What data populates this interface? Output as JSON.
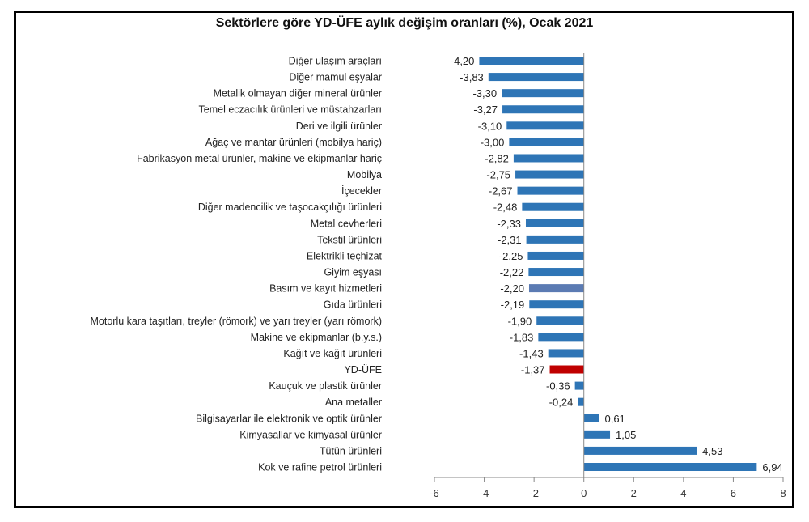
{
  "chart_data": {
    "type": "bar",
    "orientation": "horizontal",
    "title": "Sektörlere göre YD-ÜFE aylık değişim oranları (%), Ocak 2021",
    "xlabel": "",
    "ylabel": "",
    "xlim": [
      -6,
      8
    ],
    "xticks": [
      "-6",
      "-4",
      "-2",
      "0",
      "2",
      "4",
      "6",
      "8"
    ],
    "grid": false,
    "legend": "none",
    "categories": [
      "Diğer ulaşım araçları",
      "Diğer mamul eşyalar",
      "Metalik olmayan diğer mineral ürünler",
      "Temel eczacılık ürünleri ve müstahzarları",
      "Deri ve ilgili ürünler",
      "Ağaç ve mantar ürünleri (mobilya hariç)",
      "Fabrikasyon metal ürünler, makine ve ekipmanlar hariç",
      "Mobilya",
      "İçecekler",
      "Diğer madencilik ve taşocakçılığı ürünleri",
      "Metal cevherleri",
      "Tekstil ürünleri",
      "Elektrikli teçhizat",
      "Giyim eşyası",
      "Basım ve kayıt hizmetleri",
      "Gıda ürünleri",
      "Motorlu kara taşıtları, treyler (römork) ve yarı treyler (yarı römork)",
      "Makine ve ekipmanlar (b.y.s.)",
      "Kağıt ve kağıt ürünleri",
      "YD-ÜFE",
      "Kauçuk ve plastik ürünler",
      "Ana metaller",
      "Bilgisayarlar ile elektronik ve optik ürünler",
      "Kimyasallar ve kimyasal ürünler",
      "Tütün ürünleri",
      "Kok ve rafine petrol ürünleri"
    ],
    "values": [
      -4.2,
      -3.83,
      -3.3,
      -3.27,
      -3.1,
      -3.0,
      -2.82,
      -2.75,
      -2.67,
      -2.48,
      -2.33,
      -2.31,
      -2.25,
      -2.22,
      -2.2,
      -2.19,
      -1.9,
      -1.83,
      -1.43,
      -1.37,
      -0.36,
      -0.24,
      0.61,
      1.05,
      4.53,
      6.94
    ],
    "value_labels": [
      "-4,20",
      "-3,83",
      "-3,30",
      "-3,27",
      "-3,10",
      "-3,00",
      "-2,82",
      "-2,75",
      "-2,67",
      "-2,48",
      "-2,33",
      "-2,31",
      "-2,25",
      "-2,22",
      "-2,20",
      "-2,19",
      "-1,90",
      "-1,83",
      "-1,43",
      "-1,37",
      "-0,36",
      "-0,24",
      "0,61",
      "1,05",
      "4,53",
      "6,94"
    ],
    "colors": {
      "default": "#2e75b6",
      "highlight": "#c00000",
      "highlight_category": "YD-ÜFE",
      "alt": "#5b7bb3",
      "alt_category": "Basım ve kayıt hizmetleri"
    }
  }
}
